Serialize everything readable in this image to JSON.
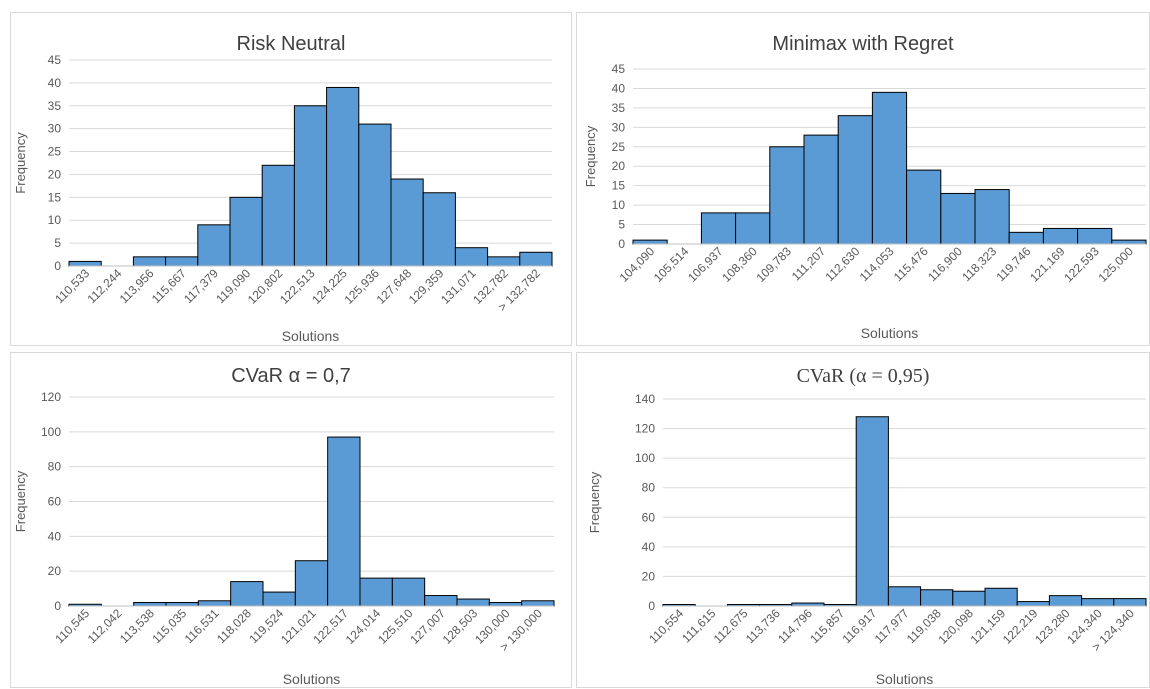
{
  "chart_data": [
    {
      "type": "bar",
      "title": "Risk Neutral",
      "xlabel": "Solutions",
      "ylabel": "Frequency",
      "ylim": [
        0,
        45
      ],
      "ytick_step": 5,
      "grid": true,
      "bar_color": "#5b9bd5",
      "categories": [
        "110,533",
        "112,244",
        "113,956",
        "115,667",
        "117,379",
        "119,090",
        "120,802",
        "122,513",
        "124,225",
        "125,936",
        "127,648",
        "129,359",
        "131,071",
        "132,782",
        "> 132,782"
      ],
      "values": [
        1,
        0,
        2,
        2,
        9,
        15,
        22,
        35,
        39,
        31,
        19,
        16,
        4,
        2,
        3
      ]
    },
    {
      "type": "bar",
      "title": "Minimax with Regret",
      "xlabel": "Solutions",
      "ylabel": "Frequency",
      "ylim": [
        0,
        45
      ],
      "ytick_step": 5,
      "grid": true,
      "bar_color": "#5b9bd5",
      "categories": [
        "104,090",
        "105,514",
        "106,937",
        "108,360",
        "109,783",
        "111,207",
        "112,630",
        "114,053",
        "115,476",
        "116,900",
        "118,323",
        "119,746",
        "121,169",
        "122,593",
        "125,000"
      ],
      "values": [
        1,
        0,
        8,
        8,
        25,
        28,
        33,
        39,
        19,
        13,
        14,
        3,
        4,
        4,
        1
      ]
    },
    {
      "type": "bar",
      "title": "CVaR α = 0,7",
      "xlabel": "Solutions",
      "ylabel": "Frequency",
      "ylim": [
        0,
        120
      ],
      "ytick_step": 20,
      "grid": true,
      "bar_color": "#5b9bd5",
      "categories": [
        "110,545",
        "112,042",
        "113,538",
        "115,035",
        "116,531",
        "118,028",
        "119,524",
        "121,021",
        "122,517",
        "124,014",
        "125,510",
        "127,007",
        "128,503",
        "130,000",
        "> 130,000"
      ],
      "values": [
        1,
        0,
        2,
        2,
        3,
        14,
        8,
        26,
        97,
        16,
        16,
        6,
        4,
        2,
        3
      ]
    },
    {
      "type": "bar",
      "title": "CVaR (α = 0,95)",
      "xlabel": "Solutions",
      "ylabel": "Frequency",
      "ylim": [
        0,
        140
      ],
      "ytick_step": 20,
      "grid": true,
      "bar_color": "#5b9bd5",
      "categories": [
        "110,554",
        "111,615",
        "112,675",
        "113,736",
        "114,796",
        "115,857",
        "116,917",
        "117,977",
        "119,038",
        "120,098",
        "121,159",
        "122,219",
        "123,280",
        "124,340",
        "> 124,340"
      ],
      "values": [
        1,
        0,
        1,
        1,
        2,
        1,
        128,
        13,
        11,
        10,
        12,
        3,
        7,
        5,
        5
      ]
    }
  ]
}
